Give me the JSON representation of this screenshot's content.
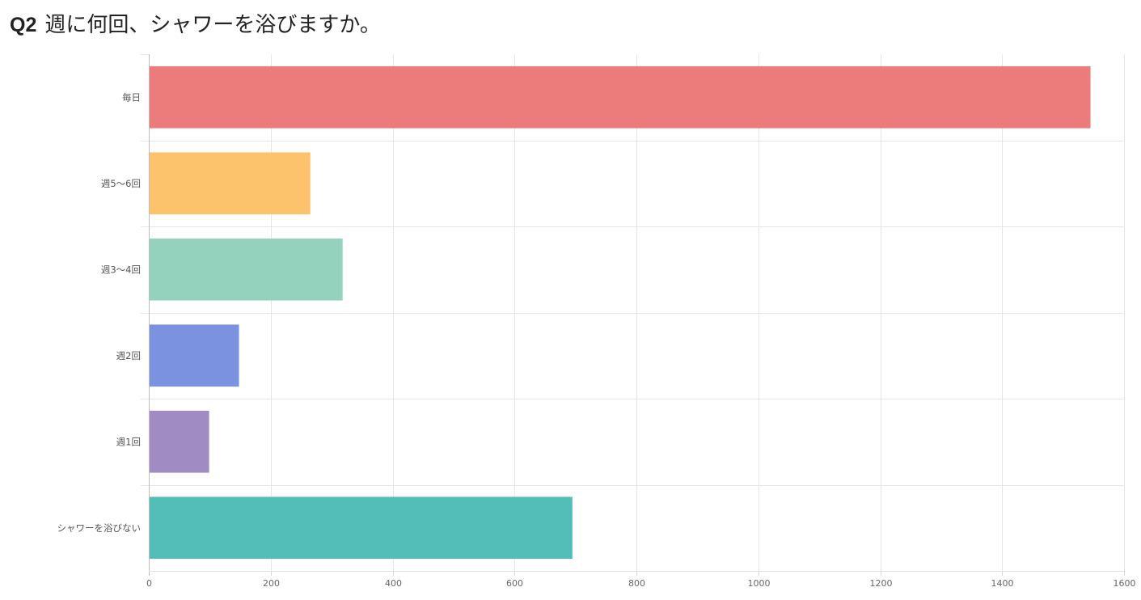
{
  "question": {
    "number": "Q2",
    "text": "週に何回、シャワーを浴びますか。"
  },
  "chart_data": {
    "type": "bar",
    "orientation": "horizontal",
    "title": "",
    "xlabel": "",
    "ylabel": "",
    "categories": [
      "毎日",
      "週5〜6回",
      "週3〜4回",
      "週2回",
      "週1回",
      "シャワーを浴びない"
    ],
    "values": [
      1545,
      265,
      318,
      148,
      99,
      695
    ],
    "colors": [
      "#ec7b7b",
      "#fdc36c",
      "#94d2bd",
      "#7a92df",
      "#a08bc3",
      "#53beb8"
    ],
    "xlim": [
      0,
      1600
    ],
    "xticks": [
      0,
      200,
      400,
      600,
      800,
      1000,
      1200,
      1400,
      1600
    ],
    "grid": true,
    "legend": "none"
  }
}
